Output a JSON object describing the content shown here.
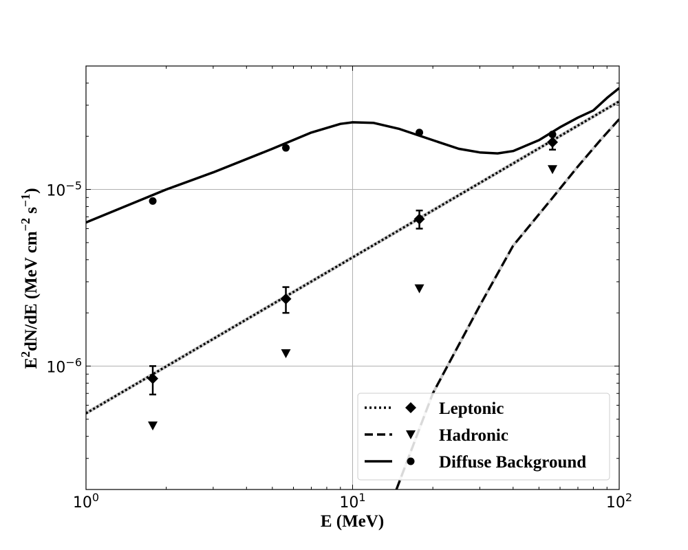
{
  "chart_data": {
    "type": "scatter",
    "x_scale": "log",
    "y_scale": "log",
    "xlim": [
      1,
      100
    ],
    "ylim": [
      2e-07,
      5e-05
    ],
    "grid": true,
    "xlabel": "E (MeV)",
    "ylabel_main": "E",
    "ylabel_sup": "2",
    "ylabel_mid": "dN/dE (MeV cm",
    "ylabel_sup2": "−2",
    "ylabel_mid2": " s",
    "ylabel_sup3": "−1",
    "ylabel_end": ")",
    "x_ticks": [
      {
        "value": 1,
        "base": "10",
        "exp": "0"
      },
      {
        "value": 10,
        "base": "10",
        "exp": "1"
      },
      {
        "value": 100,
        "base": "10",
        "exp": "2"
      }
    ],
    "y_ticks": [
      {
        "value": 1e-06,
        "base": "10",
        "exp": "−6"
      },
      {
        "value": 1e-05,
        "base": "10",
        "exp": "−5"
      }
    ],
    "legend_position": "lower-right",
    "legend": [
      {
        "label": "Leptonic",
        "line": "dotted",
        "marker": "diamond"
      },
      {
        "label": "Hadronic",
        "line": "dashed",
        "marker": "triangle-down"
      },
      {
        "label": "Diffuse Background",
        "line": "solid",
        "marker": "circle"
      }
    ],
    "series": [
      {
        "name": "Leptonic",
        "kind": "points",
        "marker": "diamond",
        "x": [
          1.78,
          5.62,
          17.8,
          56.2
        ],
        "y": [
          8.5e-07,
          2.4e-06,
          6.8e-06,
          1.85e-05
        ],
        "yerr_low": [
          6.9e-07,
          2e-06,
          6e-06,
          1.68e-05
        ],
        "yerr_high": [
          1e-06,
          2.8e-06,
          7.6e-06,
          2.02e-05
        ]
      },
      {
        "name": "Hadronic",
        "kind": "points",
        "marker": "triangle-down",
        "x": [
          1.78,
          5.62,
          17.8,
          56.2
        ],
        "y": [
          4.6e-07,
          1.18e-06,
          2.75e-06,
          1.3e-05
        ]
      },
      {
        "name": "Diffuse Background",
        "kind": "points",
        "marker": "circle",
        "x": [
          1.78,
          5.62,
          17.8,
          56.2
        ],
        "y": [
          8.6e-06,
          1.72e-05,
          2.1e-05,
          2.05e-05
        ]
      },
      {
        "name": "Leptonic",
        "kind": "line",
        "style": "dotted",
        "x": [
          1,
          100
        ],
        "y": [
          5.4e-07,
          3.15e-05
        ]
      },
      {
        "name": "Hadronic",
        "kind": "line",
        "style": "dashed",
        "x": [
          14.6,
          20,
          30,
          40,
          56,
          70,
          85,
          100
        ],
        "y": [
          2e-07,
          7e-07,
          2.2e-06,
          4.8e-06,
          8.9e-06,
          1.35e-05,
          1.9e-05,
          2.5e-05
        ]
      },
      {
        "name": "Diffuse Background",
        "kind": "line",
        "style": "solid",
        "x": [
          1,
          2,
          3,
          5,
          7,
          9,
          10,
          12,
          15,
          20,
          25,
          30,
          35,
          40,
          50,
          60,
          70,
          80,
          90,
          100
        ],
        "y": [
          6.5e-06,
          1e-05,
          1.25e-05,
          1.7e-05,
          2.1e-05,
          2.35e-05,
          2.4e-05,
          2.38e-05,
          2.2e-05,
          1.9e-05,
          1.7e-05,
          1.62e-05,
          1.6e-05,
          1.65e-05,
          1.9e-05,
          2.25e-05,
          2.55e-05,
          2.8e-05,
          3.3e-05,
          3.75e-05
        ]
      }
    ]
  }
}
